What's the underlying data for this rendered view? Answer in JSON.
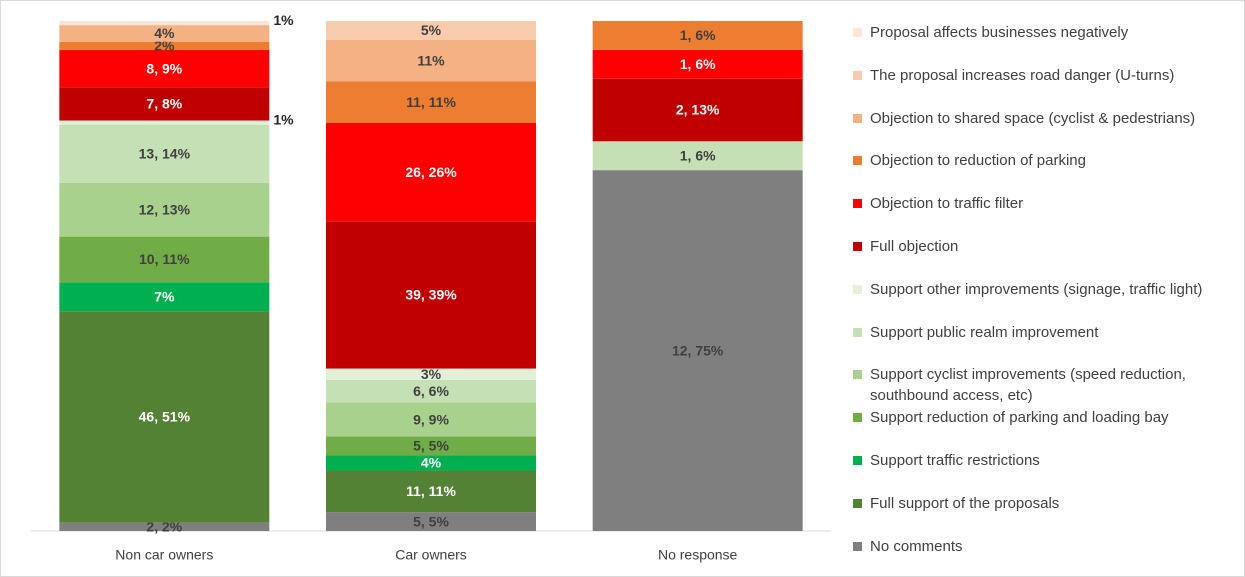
{
  "chart_data": {
    "type": "bar",
    "stacked": "percent",
    "categories": [
      "Non car owners",
      "Car owners",
      "No response"
    ],
    "series": [
      {
        "name": "No comments",
        "color": "#7f7f7f",
        "values": [
          2,
          5,
          75
        ],
        "value_labels": [
          "2, 2%",
          "5, 5%",
          "12, 75%"
        ]
      },
      {
        "name": "Full support of the proposals",
        "color": "#548235",
        "values": [
          51,
          11,
          null
        ],
        "value_labels": [
          "46, 51%",
          "11, 11%",
          null
        ]
      },
      {
        "name": "Support traffic restrictions",
        "color": "#00b050",
        "values": [
          7,
          4,
          null
        ],
        "value_labels": [
          "7%",
          "4%",
          null
        ]
      },
      {
        "name": "Support reduction of parking and loading bay",
        "color": "#70ad47",
        "values": [
          11,
          5,
          null
        ],
        "value_labels": [
          "10, 11%",
          "5, 5%",
          null
        ]
      },
      {
        "name": "Support cyclist improvements (speed reduction, southbound access, etc)",
        "color": "#a9d18e",
        "values": [
          13,
          9,
          null
        ],
        "value_labels": [
          "12, 13%",
          "9, 9%",
          null
        ]
      },
      {
        "name": "Support public realm improvement",
        "color": "#c5e0b4",
        "values": [
          14,
          6,
          6
        ],
        "value_labels": [
          "13, 14%",
          "6, 6%",
          "1, 6%"
        ]
      },
      {
        "name": "Support other improvements (signage, traffic light)",
        "color": "#e2f0d9",
        "values": [
          1,
          3,
          null
        ],
        "value_labels": [
          "1%",
          "3%",
          null
        ]
      },
      {
        "name": "Full objection",
        "color": "#c00000",
        "values": [
          8,
          39,
          13
        ],
        "value_labels": [
          "7, 8%",
          "39, 39%",
          "2, 13%"
        ]
      },
      {
        "name": "Objection to traffic filter",
        "color": "#ff0000",
        "values": [
          9,
          26,
          6
        ],
        "value_labels": [
          "8, 9%",
          "26, 26%",
          "1, 6%"
        ]
      },
      {
        "name": "Objection to reduction of parking",
        "color": "#ed7d31",
        "values": [
          2,
          11,
          6
        ],
        "value_labels": [
          "2%",
          "11, 11%",
          "1, 6%"
        ]
      },
      {
        "name": "Objection to shared space (cyclist & pedestrians)",
        "color": "#f4b183",
        "values": [
          4,
          11,
          null
        ],
        "value_labels": [
          "4%",
          "11%",
          null
        ]
      },
      {
        "name": "The proposal increases road danger (U-turns)",
        "color": "#f8cbad",
        "values": [
          null,
          5,
          null
        ],
        "value_labels": [
          null,
          "5%",
          null
        ]
      },
      {
        "name": "Proposal affects businesses negatively",
        "color": "#fbe5d6",
        "values": [
          1,
          null,
          null
        ],
        "value_labels": [
          "1%",
          null,
          null
        ]
      }
    ]
  }
}
